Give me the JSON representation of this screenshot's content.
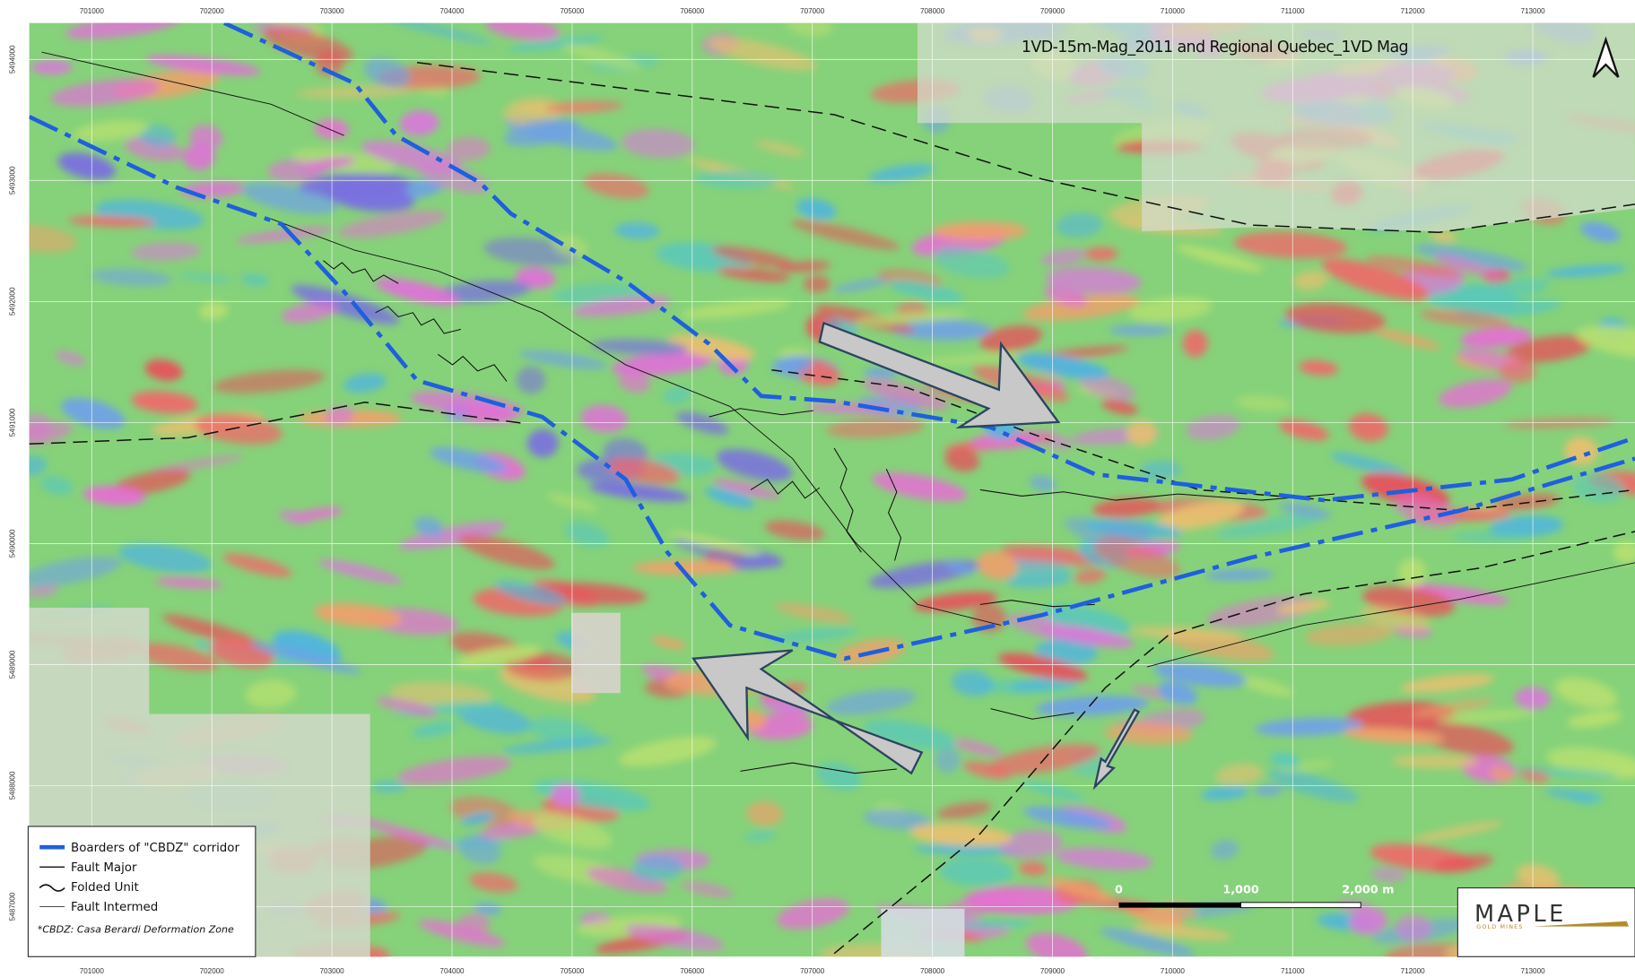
{
  "map": {
    "title": "1VD-15m-Mag_2011 and Regional Quebec_1VD Mag",
    "x_labels": [
      "701000",
      "702000",
      "703000",
      "704000",
      "705000",
      "706000",
      "707000",
      "708000",
      "709000",
      "710000",
      "711000",
      "712000",
      "713000"
    ],
    "y_labels": [
      "5494000",
      "5493000",
      "5492000",
      "5491000",
      "5490000",
      "5489000",
      "5488000",
      "5487000"
    ],
    "legend": {
      "items": [
        "Boarders of \"CBDZ\" corridor",
        "Fault Major",
        "Folded Unit",
        "Fault Intermed"
      ],
      "note": "*CBDZ: Casa Berardi Deformation Zone"
    },
    "scale_bar": {
      "labels": [
        "0",
        "1,000",
        "2,000 m"
      ]
    },
    "logo": {
      "name": "MAPLE",
      "tagline": "GOLD MINES"
    }
  }
}
